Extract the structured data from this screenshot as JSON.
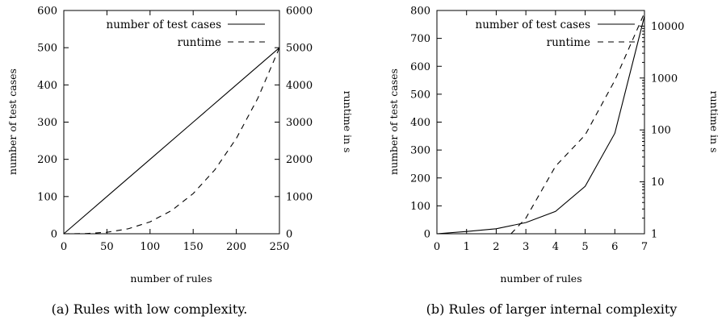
{
  "chart_data": [
    {
      "type": "line",
      "caption": "(a) Rules with low complexity.",
      "xlabel": "number of rules",
      "ylabel": "number of test cases",
      "y2label": "runtime in s",
      "xlim": [
        0,
        250
      ],
      "ylim": [
        0,
        600
      ],
      "y2lim": [
        0,
        6000
      ],
      "y2scale": "linear",
      "xticks": [
        0,
        50,
        100,
        150,
        200,
        250
      ],
      "yticks": [
        0,
        100,
        200,
        300,
        400,
        500,
        600
      ],
      "y2ticks": [
        0,
        1000,
        2000,
        3000,
        4000,
        5000,
        6000
      ],
      "legend_position": "top-right",
      "series": [
        {
          "name": "number of test cases",
          "axis": "left",
          "style": "solid",
          "x": [
            0,
            50,
            100,
            150,
            200,
            250
          ],
          "y": [
            0,
            100,
            200,
            300,
            400,
            500
          ]
        },
        {
          "name": "runtime",
          "axis": "right",
          "style": "dashed",
          "x": [
            0,
            25,
            50,
            75,
            100,
            125,
            150,
            175,
            200,
            225,
            250
          ],
          "y": [
            0,
            5,
            40,
            135,
            320,
            625,
            1080,
            1715,
            2560,
            3645,
            5000
          ]
        }
      ]
    },
    {
      "type": "line",
      "caption": "(b) Rules of larger internal complexity",
      "xlabel": "number of rules",
      "ylabel": "number of test cases",
      "y2label": "runtime in s",
      "xlim": [
        0,
        7
      ],
      "ylim": [
        0,
        800
      ],
      "y2lim": [
        1,
        20000
      ],
      "y2scale": "log",
      "xticks": [
        0,
        1,
        2,
        3,
        4,
        5,
        6,
        7
      ],
      "yticks": [
        0,
        100,
        200,
        300,
        400,
        500,
        600,
        700,
        800
      ],
      "y2ticks": [
        1,
        10,
        100,
        1000,
        10000
      ],
      "legend_position": "top-right",
      "series": [
        {
          "name": "number of test cases",
          "axis": "left",
          "style": "solid",
          "x": [
            0,
            1,
            2,
            3,
            4,
            5,
            6,
            7
          ],
          "y": [
            0,
            8,
            18,
            40,
            80,
            170,
            360,
            780
          ]
        },
        {
          "name": "runtime",
          "axis": "right",
          "style": "dashed",
          "x": [
            2.5,
            3,
            4,
            5,
            6,
            7
          ],
          "y": [
            1,
            2,
            20,
            80,
            900,
            18000
          ]
        }
      ]
    }
  ]
}
